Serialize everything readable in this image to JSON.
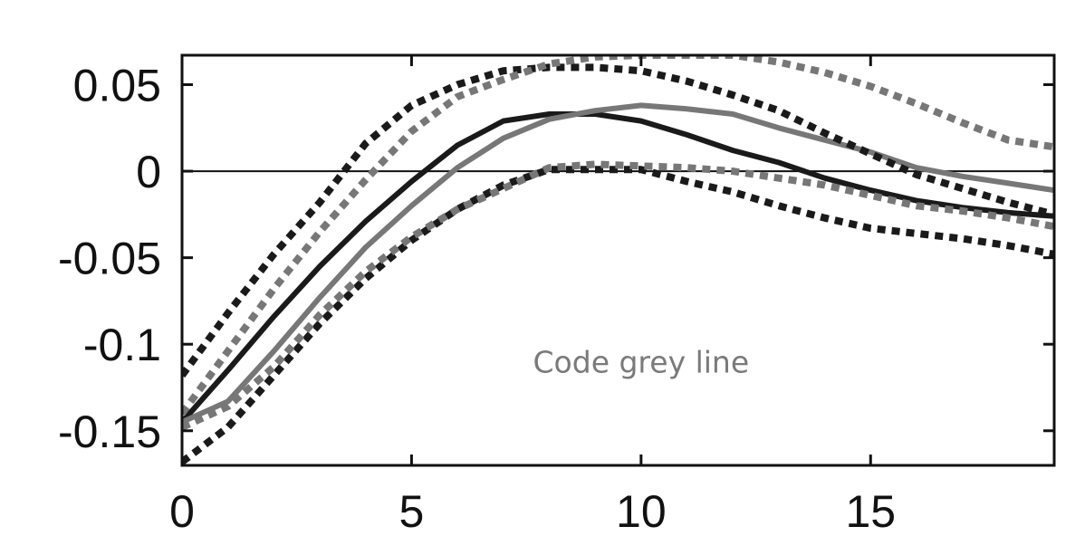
{
  "chart_data": {
    "type": "line",
    "title": "",
    "xlabel": "",
    "ylabel": "",
    "xlim": [
      0,
      19
    ],
    "ylim": [
      -0.17,
      0.067
    ],
    "x_ticks": [
      0,
      5,
      10,
      15
    ],
    "x_tick_labels": [
      "0",
      "5",
      "10",
      "15"
    ],
    "y_ticks": [
      0.05,
      0,
      -0.05,
      -0.1,
      -0.15
    ],
    "y_tick_labels": [
      "0.05",
      "0",
      "-0.05",
      "-0.1",
      "-0.15"
    ],
    "grid": false,
    "zero_line": true,
    "annotation": {
      "text": "Code grey line",
      "x": 10,
      "y": -0.11
    },
    "colors": {
      "black": "#1a1a1a",
      "grey": "#777777",
      "annotation": "#7a7a7a"
    },
    "series": [
      {
        "style": "solid",
        "color": "#1a1a1a",
        "x": [
          0,
          1,
          2,
          3,
          4,
          5,
          6,
          7,
          8,
          9,
          10,
          11,
          12,
          13,
          14,
          15,
          16,
          17,
          18,
          19
        ],
        "y": [
          -0.145,
          -0.115,
          -0.084,
          -0.055,
          -0.029,
          -0.006,
          0.015,
          0.029,
          0.033,
          0.033,
          0.029,
          0.021,
          0.012,
          0.005,
          -0.004,
          -0.011,
          -0.017,
          -0.021,
          -0.024,
          -0.026
        ]
      },
      {
        "style": "solid",
        "color": "#777777",
        "x": [
          0,
          1,
          2,
          3,
          4,
          5,
          6,
          7,
          8,
          9,
          10,
          11,
          12,
          13,
          14,
          15,
          16,
          17,
          18,
          19
        ],
        "y": [
          -0.145,
          -0.133,
          -0.104,
          -0.073,
          -0.044,
          -0.02,
          0.002,
          0.019,
          0.03,
          0.035,
          0.038,
          0.036,
          0.033,
          0.025,
          0.018,
          0.011,
          0.002,
          -0.003,
          -0.007,
          -0.011
        ]
      },
      {
        "style": "dotted",
        "color": "#1a1a1a",
        "x": [
          0,
          1,
          2,
          3,
          4,
          5,
          6,
          7,
          8,
          9,
          10,
          11,
          12,
          13,
          14,
          15,
          16,
          17,
          18,
          19
        ],
        "y": [
          -0.118,
          -0.082,
          -0.048,
          -0.018,
          0.016,
          0.038,
          0.05,
          0.058,
          0.06,
          0.06,
          0.058,
          0.052,
          0.044,
          0.035,
          0.022,
          0.01,
          -0.002,
          -0.01,
          -0.018,
          -0.025
        ]
      },
      {
        "style": "dotted",
        "color": "#1a1a1a",
        "x": [
          0,
          1,
          2,
          3,
          4,
          5,
          6,
          7,
          8,
          9,
          10,
          11,
          12,
          13,
          14,
          15,
          16,
          17,
          18,
          19
        ],
        "y": [
          -0.168,
          -0.148,
          -0.118,
          -0.088,
          -0.062,
          -0.04,
          -0.022,
          -0.008,
          0.001,
          0.001,
          0.001,
          -0.006,
          -0.012,
          -0.02,
          -0.027,
          -0.033,
          -0.036,
          -0.039,
          -0.043,
          -0.048
        ]
      },
      {
        "style": "dotted",
        "color": "#777777",
        "x": [
          0,
          1,
          2,
          3,
          4,
          5,
          6,
          7,
          8,
          9,
          10,
          11,
          12,
          13,
          14,
          15,
          16,
          17,
          18,
          19
        ],
        "y": [
          -0.14,
          -0.104,
          -0.068,
          -0.035,
          -0.005,
          0.023,
          0.043,
          0.053,
          0.062,
          0.066,
          0.067,
          0.067,
          0.067,
          0.063,
          0.057,
          0.049,
          0.039,
          0.028,
          0.018,
          0.014
        ]
      },
      {
        "style": "dotted",
        "color": "#777777",
        "x": [
          0,
          1,
          2,
          3,
          4,
          5,
          6,
          7,
          8,
          9,
          10,
          11,
          12,
          13,
          14,
          15,
          16,
          17,
          18,
          19
        ],
        "y": [
          -0.148,
          -0.136,
          -0.113,
          -0.083,
          -0.058,
          -0.038,
          -0.022,
          -0.01,
          0.002,
          0.004,
          0.003,
          0.002,
          0.0,
          -0.004,
          -0.008,
          -0.014,
          -0.02,
          -0.023,
          -0.027,
          -0.032
        ]
      }
    ]
  }
}
